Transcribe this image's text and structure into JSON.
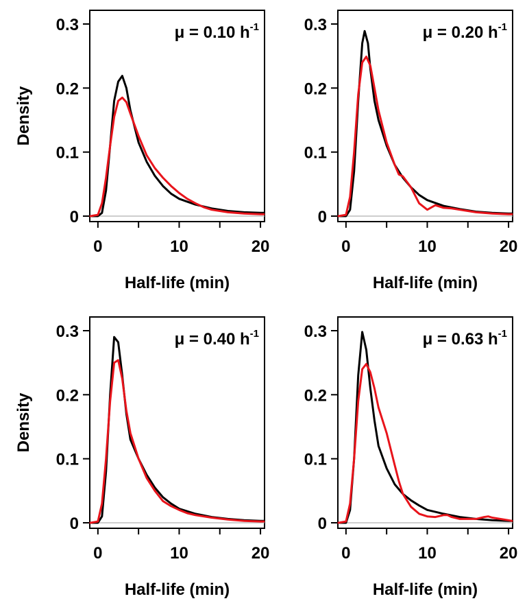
{
  "colors": {
    "black_series": "#000000",
    "red_series": "#e8141b",
    "zero_line": "#bdbdbd"
  },
  "chart_data": [
    {
      "type": "line",
      "annotation": {
        "main": "μ = 0.10 h",
        "sup": "-1"
      },
      "xlabel": "Half-life (min)",
      "ylabel": "Density",
      "xlim": [
        -1,
        20.5
      ],
      "ylim": [
        0,
        0.3
      ],
      "xticks": [
        "0",
        "10",
        "20"
      ],
      "yticks": [
        "0",
        "0.1",
        "0.2",
        "0.3"
      ],
      "series": [
        {
          "color": "#000000",
          "x": [
            -1,
            0,
            0.5,
            1,
            1.5,
            2,
            2.5,
            3,
            3.5,
            4,
            5,
            6,
            7,
            8,
            9,
            10,
            12,
            14,
            16,
            18,
            20,
            20.5
          ],
          "y": [
            0,
            0,
            0.005,
            0.04,
            0.11,
            0.18,
            0.21,
            0.219,
            0.2,
            0.165,
            0.115,
            0.085,
            0.063,
            0.047,
            0.035,
            0.027,
            0.018,
            0.012,
            0.008,
            0.006,
            0.005,
            0.005
          ]
        },
        {
          "color": "#e8141b",
          "x": [
            -1,
            0,
            0.5,
            1,
            1.5,
            2,
            2.5,
            3,
            3.5,
            4,
            5,
            6,
            7,
            8,
            9,
            10,
            11,
            12,
            13,
            14,
            16,
            18,
            20,
            20.5
          ],
          "y": [
            0,
            0.002,
            0.02,
            0.06,
            0.11,
            0.155,
            0.18,
            0.185,
            0.178,
            0.16,
            0.125,
            0.095,
            0.075,
            0.06,
            0.047,
            0.036,
            0.027,
            0.02,
            0.014,
            0.01,
            0.006,
            0.004,
            0.003,
            0.003
          ]
        }
      ]
    },
    {
      "type": "line",
      "annotation": {
        "main": "μ = 0.20 h",
        "sup": "-1"
      },
      "xlabel": "Half-life (min)",
      "ylabel": "",
      "xlim": [
        -1,
        20.5
      ],
      "ylim": [
        0,
        0.3
      ],
      "xticks": [
        "0",
        "10",
        "20"
      ],
      "yticks": [
        "0",
        "0.1",
        "0.2",
        "0.3"
      ],
      "series": [
        {
          "color": "#000000",
          "x": [
            -1,
            0,
            0.5,
            1,
            1.5,
            2,
            2.3,
            2.7,
            3,
            3.5,
            4,
            5,
            6,
            7,
            8,
            9,
            10,
            12,
            14,
            16,
            18,
            20,
            20.5
          ],
          "y": [
            0,
            0,
            0.01,
            0.07,
            0.18,
            0.27,
            0.289,
            0.27,
            0.23,
            0.18,
            0.15,
            0.11,
            0.08,
            0.06,
            0.045,
            0.033,
            0.025,
            0.016,
            0.011,
            0.007,
            0.005,
            0.004,
            0.004
          ]
        },
        {
          "color": "#e8141b",
          "x": [
            -1,
            0,
            0.5,
            1,
            1.5,
            2,
            2.5,
            3,
            3.5,
            4,
            5,
            6,
            6.5,
            7,
            8,
            9,
            10,
            11,
            12,
            13,
            14,
            16,
            18,
            20,
            20.5
          ],
          "y": [
            0,
            0.002,
            0.03,
            0.1,
            0.19,
            0.24,
            0.249,
            0.235,
            0.2,
            0.165,
            0.115,
            0.08,
            0.065,
            0.062,
            0.045,
            0.02,
            0.01,
            0.017,
            0.013,
            0.012,
            0.01,
            0.006,
            0.004,
            0.003,
            0.003
          ]
        }
      ]
    },
    {
      "type": "line",
      "annotation": {
        "main": "μ = 0.40 h",
        "sup": "-1"
      },
      "xlabel": "Half-life (min)",
      "ylabel": "Density",
      "xlim": [
        -1,
        20.5
      ],
      "ylim": [
        0,
        0.3
      ],
      "xticks": [
        "0",
        "10",
        "20"
      ],
      "yticks": [
        "0",
        "0.1",
        "0.2",
        "0.3"
      ],
      "series": [
        {
          "color": "#000000",
          "x": [
            -1,
            0,
            0.5,
            1,
            1.5,
            2,
            2.5,
            3,
            3.5,
            4,
            5,
            6,
            7,
            8,
            9,
            10,
            12,
            14,
            16,
            18,
            20,
            20.5
          ],
          "y": [
            0,
            0,
            0.01,
            0.08,
            0.2,
            0.29,
            0.282,
            0.23,
            0.17,
            0.13,
            0.1,
            0.075,
            0.055,
            0.04,
            0.03,
            0.022,
            0.014,
            0.009,
            0.006,
            0.004,
            0.003,
            0.003
          ]
        },
        {
          "color": "#e8141b",
          "x": [
            -1,
            0,
            0.5,
            1,
            1.5,
            2,
            2.5,
            3,
            3.5,
            4,
            5,
            6,
            7,
            8,
            9,
            10,
            11,
            12,
            14,
            16,
            18,
            20,
            20.5
          ],
          "y": [
            0,
            0.002,
            0.03,
            0.1,
            0.19,
            0.25,
            0.254,
            0.225,
            0.175,
            0.14,
            0.1,
            0.07,
            0.05,
            0.034,
            0.026,
            0.02,
            0.015,
            0.012,
            0.008,
            0.005,
            0.003,
            0.002,
            0.002
          ]
        }
      ]
    },
    {
      "type": "line",
      "annotation": {
        "main": "μ = 0.63 h",
        "sup": "-1"
      },
      "xlabel": "Half-life (min)",
      "ylabel": "",
      "xlim": [
        -1,
        20.5
      ],
      "ylim": [
        0,
        0.3
      ],
      "xticks": [
        "0",
        "10",
        "20"
      ],
      "yticks": [
        "0",
        "0.1",
        "0.2",
        "0.3"
      ],
      "series": [
        {
          "color": "#000000",
          "x": [
            -1,
            0,
            0.5,
            1,
            1.5,
            2,
            2.5,
            3,
            3.5,
            4,
            5,
            6,
            7,
            8,
            9,
            10,
            12,
            14,
            16,
            18,
            20,
            20.5
          ],
          "y": [
            0,
            0,
            0.02,
            0.1,
            0.23,
            0.298,
            0.27,
            0.21,
            0.16,
            0.12,
            0.085,
            0.06,
            0.045,
            0.035,
            0.027,
            0.02,
            0.014,
            0.009,
            0.006,
            0.004,
            0.003,
            0.003
          ]
        },
        {
          "color": "#e8141b",
          "x": [
            -1,
            0,
            0.5,
            1,
            1.5,
            2,
            2.5,
            3,
            3.5,
            4,
            5,
            6,
            6.5,
            7,
            8,
            9,
            10,
            11,
            12,
            12.5,
            13,
            14,
            16,
            17,
            17.5,
            18,
            20,
            20.5
          ],
          "y": [
            0,
            0.002,
            0.03,
            0.1,
            0.19,
            0.24,
            0.248,
            0.235,
            0.21,
            0.18,
            0.14,
            0.09,
            0.065,
            0.045,
            0.025,
            0.014,
            0.01,
            0.009,
            0.012,
            0.012,
            0.009,
            0.006,
            0.006,
            0.009,
            0.01,
            0.008,
            0.004,
            0.003
          ]
        }
      ]
    }
  ]
}
